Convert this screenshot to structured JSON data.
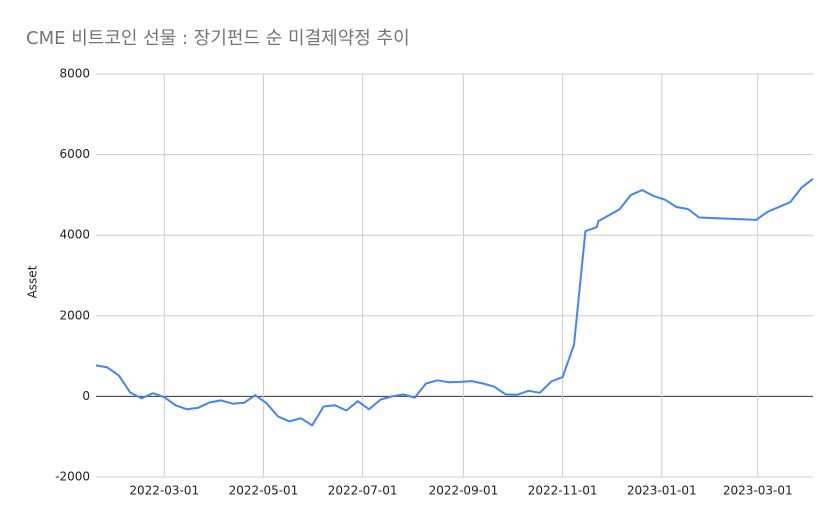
{
  "chart_data": {
    "type": "line",
    "title": "CME 비트코인 선물 : 장기펀드 순 미결제약정 추이",
    "y_label": "Asset",
    "x": [
      "2022-01-18",
      "2022-01-25",
      "2022-02-01",
      "2022-02-08",
      "2022-02-15",
      "2022-02-22",
      "2022-03-01",
      "2022-03-08",
      "2022-03-15",
      "2022-03-22",
      "2022-03-29",
      "2022-04-05",
      "2022-04-12",
      "2022-04-19",
      "2022-04-26",
      "2022-05-03",
      "2022-05-10",
      "2022-05-17",
      "2022-05-24",
      "2022-05-31",
      "2022-06-07",
      "2022-06-14",
      "2022-06-21",
      "2022-06-28",
      "2022-07-05",
      "2022-07-12",
      "2022-07-19",
      "2022-07-26",
      "2022-08-02",
      "2022-08-09",
      "2022-08-16",
      "2022-08-23",
      "2022-08-30",
      "2022-09-06",
      "2022-09-13",
      "2022-09-20",
      "2022-09-27",
      "2022-10-04",
      "2022-10-11",
      "2022-10-18",
      "2022-10-25",
      "2022-11-01",
      "2022-11-08",
      "2022-11-15",
      "2022-11-22",
      "2022-11-23",
      "2022-12-06",
      "2022-12-13",
      "2022-12-20",
      "2022-12-27",
      "2023-01-03",
      "2023-01-10",
      "2023-01-17",
      "2023-01-24",
      "2023-02-28",
      "2023-03-07",
      "2023-03-21",
      "2023-03-28",
      "2023-04-04"
    ],
    "series": [
      {
        "name": "Asset",
        "color": "#4285f4",
        "values": [
          770,
          720,
          520,
          100,
          -50,
          80,
          -20,
          -220,
          -320,
          -280,
          -150,
          -100,
          -180,
          -160,
          30,
          -170,
          -500,
          -620,
          -540,
          -720,
          -250,
          -220,
          -350,
          -120,
          -320,
          -80,
          0,
          50,
          -30,
          320,
          400,
          350,
          360,
          380,
          320,
          240,
          50,
          40,
          140,
          90,
          370,
          480,
          1280,
          4100,
          4200,
          4350,
          4640,
          5000,
          5120,
          4970,
          4880,
          4700,
          4650,
          4440,
          4380,
          4580,
          4820,
          5180,
          5400
        ]
      }
    ],
    "xlim": [
      "2022-01-18",
      "2023-04-04"
    ],
    "xticks": [
      "2022-03-01",
      "2022-05-01",
      "2022-07-01",
      "2022-09-01",
      "2022-11-01",
      "2023-01-01",
      "2023-03-01"
    ],
    "ylim": [
      -2000,
      8000
    ],
    "yticks": [
      -2000,
      0,
      2000,
      4000,
      6000,
      8000
    ],
    "grid": true
  }
}
